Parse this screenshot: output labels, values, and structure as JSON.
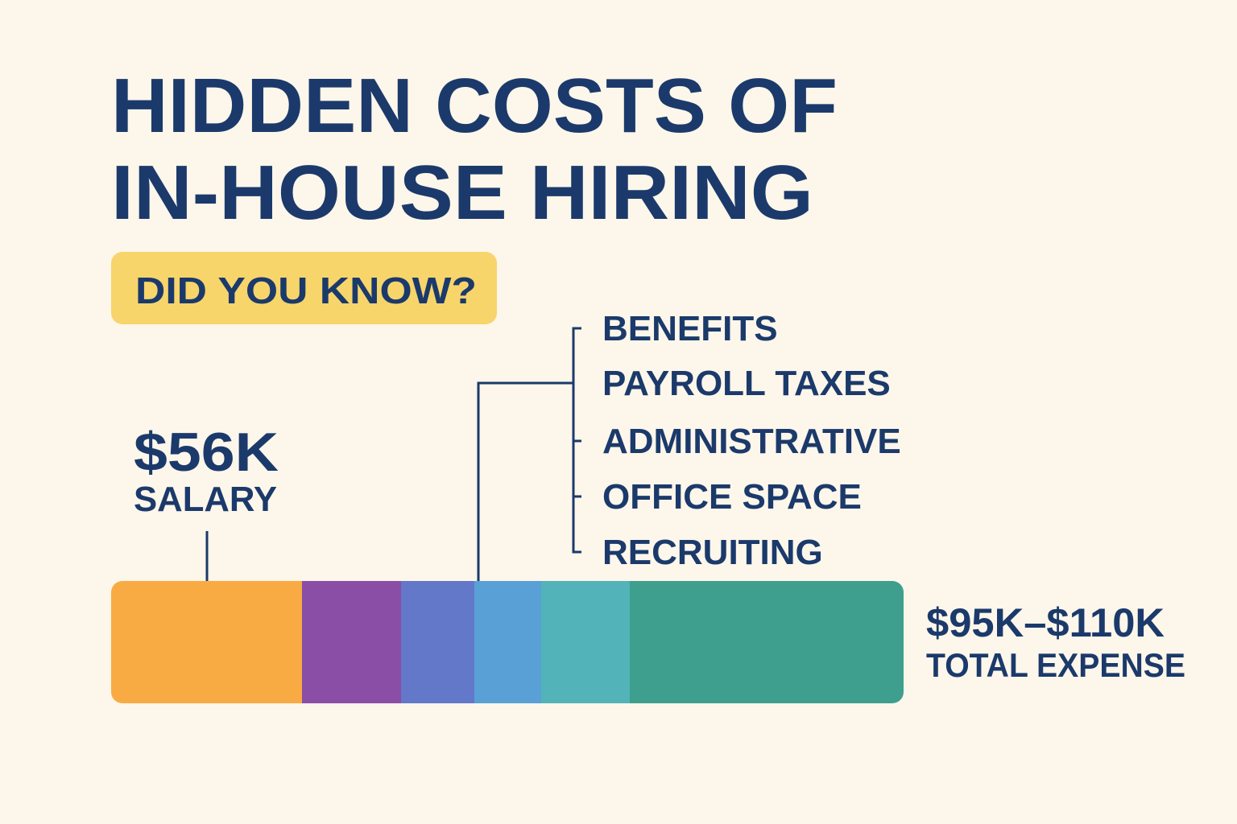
{
  "header": {
    "title_lines": [
      "HIDDEN COSTS OF",
      "IN-HOUSE HIRING"
    ],
    "badge": "DID YOU KNOW?"
  },
  "salary": {
    "amount": "$56K",
    "label": "SALARY"
  },
  "costs": [
    "BENEFITS",
    "PAYROLL TAXES",
    "ADMINISTRATIVE",
    "OFFICE SPACE",
    "RECRUITING"
  ],
  "total": {
    "amount": "$95K–$110K",
    "label": "TOTAL EXPENSE"
  }
}
